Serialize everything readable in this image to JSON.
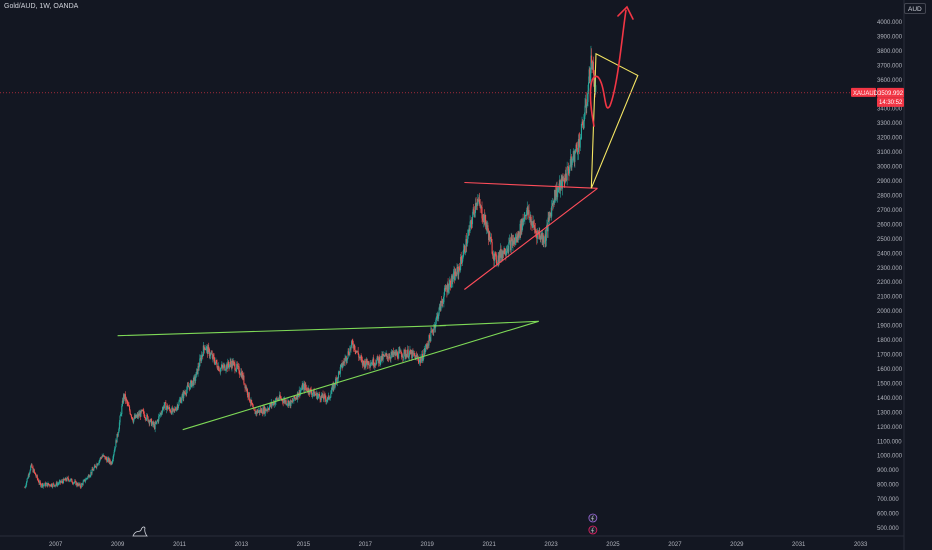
{
  "header": {
    "title": "Gold/AUD, 1W, OANDA",
    "currency": "AUD"
  },
  "price_tag": {
    "symbol": "XAUAUD",
    "price": "3509.992",
    "countdown": "14:30:52",
    "color": "#f23645"
  },
  "colors": {
    "background": "#131722",
    "up": "#26a69a",
    "down": "#ef5350",
    "green_line": "#7ed957",
    "red_line": "#ff4d5a",
    "yellow_line": "#f5e663",
    "arrow": "#f23645"
  },
  "icons": {
    "logo": "tradingview-logo-icon",
    "events": "lightning-event-icon"
  },
  "chart_data": {
    "type": "candlestick",
    "title": "Gold/AUD, 1W, OANDA",
    "timeframe": "1W",
    "x_ticks": [
      "2007",
      "2009",
      "2011",
      "2013",
      "2015",
      "2017",
      "2019",
      "2021",
      "2023",
      "2025",
      "2027",
      "2029",
      "2031",
      "2033"
    ],
    "y_ticks": [
      "4000.000",
      "3900.000",
      "3800.000",
      "3700.000",
      "3600.000",
      "3500.000",
      "3400.000",
      "3300.000",
      "3200.000",
      "3100.000",
      "3000.000",
      "2900.000",
      "2800.000",
      "2700.000",
      "2600.000",
      "2500.000",
      "2400.000",
      "2300.000",
      "2200.000",
      "2100.000",
      "2000.000",
      "1900.000",
      "1800.000",
      "1700.000",
      "1600.000",
      "1500.000",
      "1400.000",
      "1300.000",
      "1200.000",
      "1100.000",
      "1000.000",
      "900.000",
      "800.000",
      "700.000",
      "600.000",
      "500.000"
    ],
    "ylim": [
      500,
      4000
    ],
    "xlim": [
      2005.2,
      2034.4
    ],
    "last_price": 3509.992,
    "price_path": [
      [
        2006.0,
        780
      ],
      [
        2006.2,
        930
      ],
      [
        2006.5,
        800
      ],
      [
        2007.0,
        800
      ],
      [
        2007.4,
        840
      ],
      [
        2007.8,
        790
      ],
      [
        2008.2,
        900
      ],
      [
        2008.5,
        1000
      ],
      [
        2008.8,
        950
      ],
      [
        2009.0,
        1150
      ],
      [
        2009.2,
        1420
      ],
      [
        2009.5,
        1250
      ],
      [
        2009.8,
        1300
      ],
      [
        2010.2,
        1200
      ],
      [
        2010.5,
        1350
      ],
      [
        2010.8,
        1300
      ],
      [
        2011.2,
        1450
      ],
      [
        2011.5,
        1530
      ],
      [
        2011.8,
        1760
      ],
      [
        2012.0,
        1700
      ],
      [
        2012.3,
        1600
      ],
      [
        2012.7,
        1640
      ],
      [
        2013.0,
        1570
      ],
      [
        2013.4,
        1300
      ],
      [
        2013.8,
        1320
      ],
      [
        2014.2,
        1400
      ],
      [
        2014.6,
        1360
      ],
      [
        2015.0,
        1480
      ],
      [
        2015.4,
        1420
      ],
      [
        2015.8,
        1390
      ],
      [
        2016.2,
        1600
      ],
      [
        2016.6,
        1780
      ],
      [
        2016.9,
        1640
      ],
      [
        2017.3,
        1650
      ],
      [
        2017.7,
        1690
      ],
      [
        2018.0,
        1700
      ],
      [
        2018.4,
        1710
      ],
      [
        2018.8,
        1660
      ],
      [
        2019.2,
        1880
      ],
      [
        2019.6,
        2150
      ],
      [
        2020.0,
        2280
      ],
      [
        2020.3,
        2500
      ],
      [
        2020.6,
        2780
      ],
      [
        2020.9,
        2600
      ],
      [
        2021.2,
        2350
      ],
      [
        2021.6,
        2450
      ],
      [
        2021.9,
        2500
      ],
      [
        2022.2,
        2700
      ],
      [
        2022.5,
        2550
      ],
      [
        2022.8,
        2500
      ],
      [
        2023.1,
        2800
      ],
      [
        2023.4,
        2900
      ],
      [
        2023.7,
        3050
      ],
      [
        2023.95,
        3200
      ],
      [
        2024.15,
        3450
      ],
      [
        2024.3,
        3750
      ],
      [
        2024.45,
        3509.992
      ]
    ],
    "trendlines": [
      {
        "color": "green",
        "points": [
          [
            2009.0,
            1830
          ],
          [
            2019.6,
            1900
          ]
        ]
      },
      {
        "color": "green",
        "points": [
          [
            2011.1,
            1180
          ],
          [
            2022.6,
            1930
          ]
        ]
      },
      {
        "color": "green",
        "points": [
          [
            2019.4,
            1900
          ],
          [
            2022.6,
            1930
          ]
        ]
      },
      {
        "color": "red",
        "points": [
          [
            2020.2,
            2890
          ],
          [
            2024.5,
            2850
          ]
        ]
      },
      {
        "color": "red",
        "points": [
          [
            2020.2,
            2150
          ],
          [
            2024.5,
            2850
          ]
        ]
      },
      {
        "color": "yellow",
        "points": [
          [
            2024.3,
            2850
          ],
          [
            2024.45,
            3780
          ],
          [
            2025.8,
            3630
          ],
          [
            2024.3,
            2850
          ]
        ]
      }
    ]
  }
}
